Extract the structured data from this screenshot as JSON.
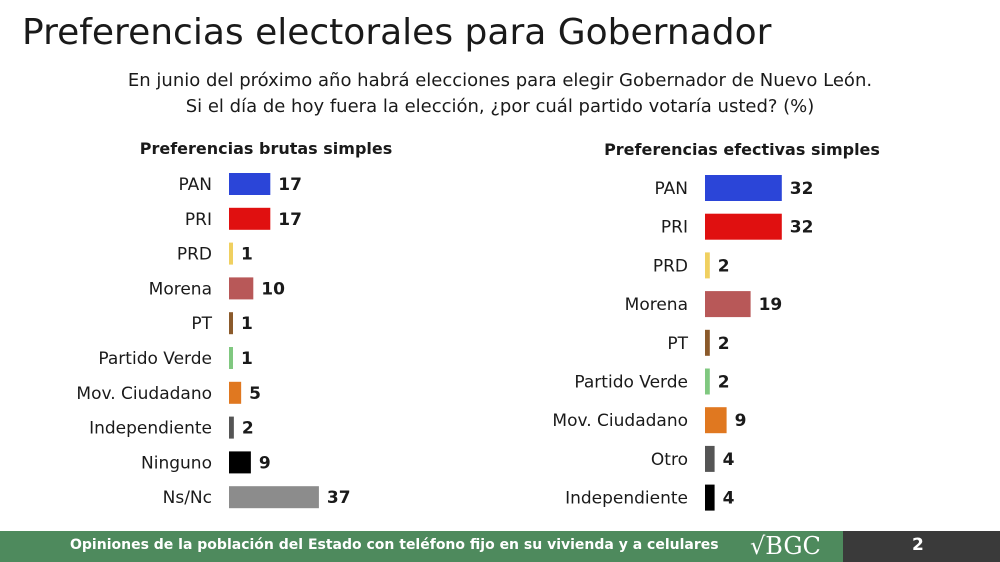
{
  "title": "Preferencias electorales para Gobernador",
  "question": {
    "line1": "En junio del próximo año habrá elecciones para elegir Gobernador de Nuevo León.",
    "line2": "Si el día de hoy fuera la elección, ¿por cuál partido votaría usted? (%)"
  },
  "chart_data": [
    {
      "type": "bar",
      "orientation": "horizontal",
      "title": "Preferencias brutas simples",
      "categories": [
        "PAN",
        "PRI",
        "PRD",
        "Morena",
        "PT",
        "Partido Verde",
        "Mov. Ciudadano",
        "Independiente",
        "Ninguno",
        "Ns/Nc"
      ],
      "values": [
        17,
        17,
        1,
        10,
        1,
        1,
        5,
        2,
        9,
        37
      ],
      "colors": [
        "#2b45d8",
        "#e01010",
        "#f0d060",
        "#b85858",
        "#8b5a2b",
        "#80c880",
        "#e07820",
        "#555555",
        "#000000",
        "#8c8c8c"
      ]
    },
    {
      "type": "bar",
      "orientation": "horizontal",
      "title": "Preferencias efectivas simples",
      "categories": [
        "PAN",
        "PRI",
        "PRD",
        "Morena",
        "PT",
        "Partido Verde",
        "Mov. Ciudadano",
        "Otro",
        "Independiente"
      ],
      "values": [
        32,
        32,
        2,
        19,
        2,
        2,
        9,
        4,
        4
      ],
      "colors": [
        "#2b45d8",
        "#e01010",
        "#f0d060",
        "#b85858",
        "#8b5a2b",
        "#80c880",
        "#e07820",
        "#555555",
        "#000000"
      ]
    }
  ],
  "footer": {
    "text": "Opiniones de la población del Estado con teléfono fijo en su vivienda y a celulares",
    "logo": "√BGC",
    "page": "2"
  }
}
